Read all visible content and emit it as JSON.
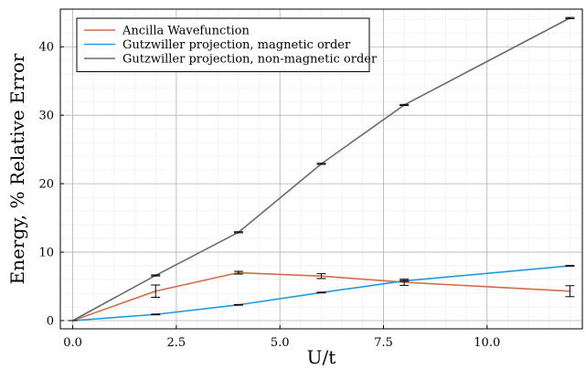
{
  "chart_data": {
    "type": "line",
    "title": "",
    "xlabel": "U/t",
    "ylabel": "Energy, % Relative Error",
    "xlim": [
      -0.3,
      12.3
    ],
    "ylim": [
      -1.2,
      45.5
    ],
    "x_ticks": [
      0,
      2.5,
      5,
      7.5,
      10
    ],
    "x_tick_labels": [
      "0.0",
      "2.5",
      "5.0",
      "7.5",
      "10.0"
    ],
    "y_ticks": [
      0,
      10,
      20,
      30,
      40
    ],
    "y_tick_labels": [
      "0",
      "10",
      "20",
      "30",
      "40"
    ],
    "grid": true,
    "minor_grid": true,
    "legend_position": "top-left",
    "series": [
      {
        "name": "Ancilla Wavefunction",
        "color": "#d26c4f",
        "x": [
          0,
          2,
          4,
          6,
          8,
          12
        ],
        "y": [
          0,
          4.3,
          7.0,
          6.5,
          5.6,
          4.3
        ],
        "yerr": [
          0,
          0.9,
          0.2,
          0.35,
          0.45,
          0.8
        ]
      },
      {
        "name": "Gutzwiller projection, magnetic order",
        "color": "#1f9ae0",
        "x": [
          0,
          2,
          4,
          6,
          8,
          12
        ],
        "y": [
          0,
          0.9,
          2.3,
          4.1,
          5.8,
          8.0
        ],
        "yerr": [
          0,
          0.05,
          0.05,
          0.05,
          0.05,
          0.05
        ]
      },
      {
        "name": "Gutzwiller projection, non-magnetic order",
        "color": "#6b6b6b",
        "x": [
          0,
          2,
          4,
          6,
          8,
          12
        ],
        "y": [
          0,
          6.6,
          12.9,
          22.9,
          31.5,
          44.2
        ],
        "yerr": [
          0,
          0.08,
          0.08,
          0.08,
          0.08,
          0.08
        ]
      }
    ]
  }
}
